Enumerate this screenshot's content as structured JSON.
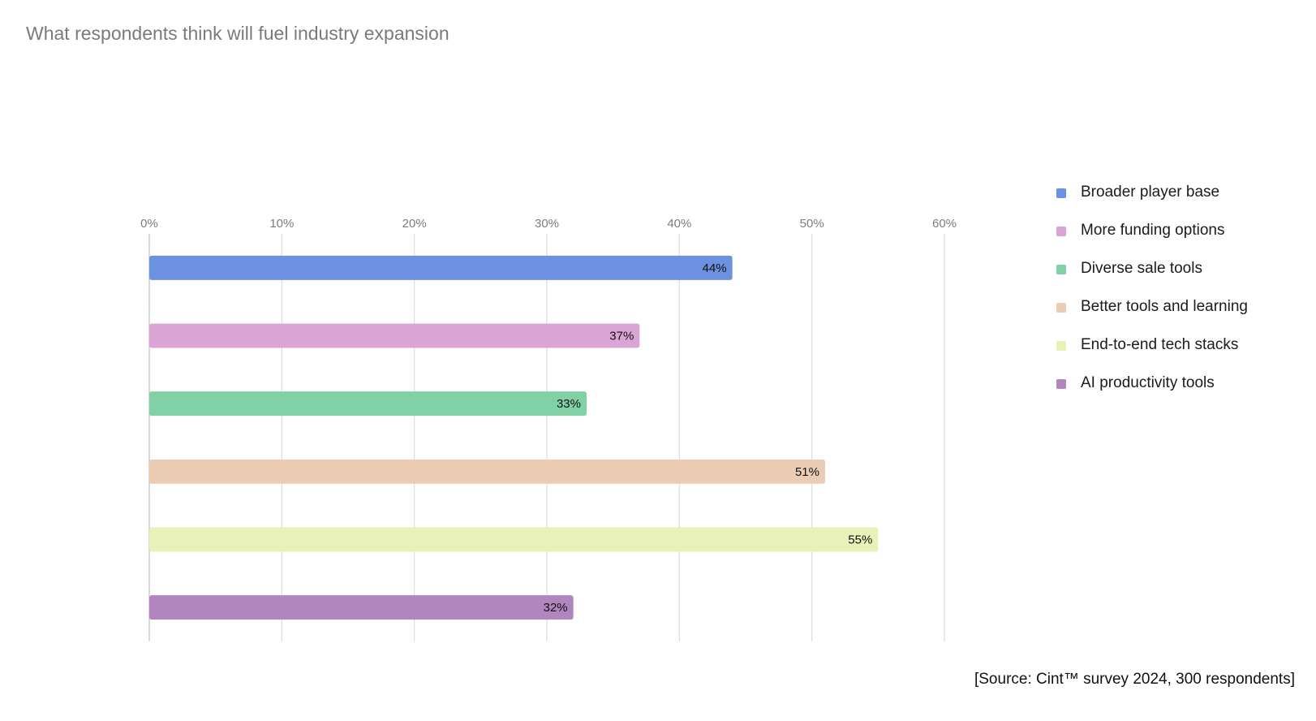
{
  "chart_data": {
    "type": "bar",
    "orientation": "horizontal",
    "title": "What respondents think will fuel industry expansion",
    "categories": [
      "Broader player base",
      "More funding options",
      "Diverse sale tools",
      "Better tools and learning",
      "End-to-end tech stacks",
      "AI productivity tools"
    ],
    "values": [
      44,
      37,
      33,
      51,
      55,
      32
    ],
    "data_labels": [
      "44%",
      "37%",
      "33%",
      "51%",
      "55%",
      "32%"
    ],
    "colors": [
      "#6b91e0",
      "#daa4d5",
      "#80d1a6",
      "#ebcdb6",
      "#e8f1b8",
      "#b185be"
    ],
    "xlim": [
      0,
      60
    ],
    "x_ticks": [
      0,
      10,
      20,
      30,
      40,
      50,
      60
    ],
    "x_tick_labels": [
      "0%",
      "10%",
      "20%",
      "30%",
      "40%",
      "50%",
      "60%"
    ],
    "xlabel": "",
    "ylabel": "",
    "axis_position": "top",
    "grid": true,
    "legend_position": "right",
    "source": "[Source: Cint™ survey 2024, 300 respondents]"
  }
}
